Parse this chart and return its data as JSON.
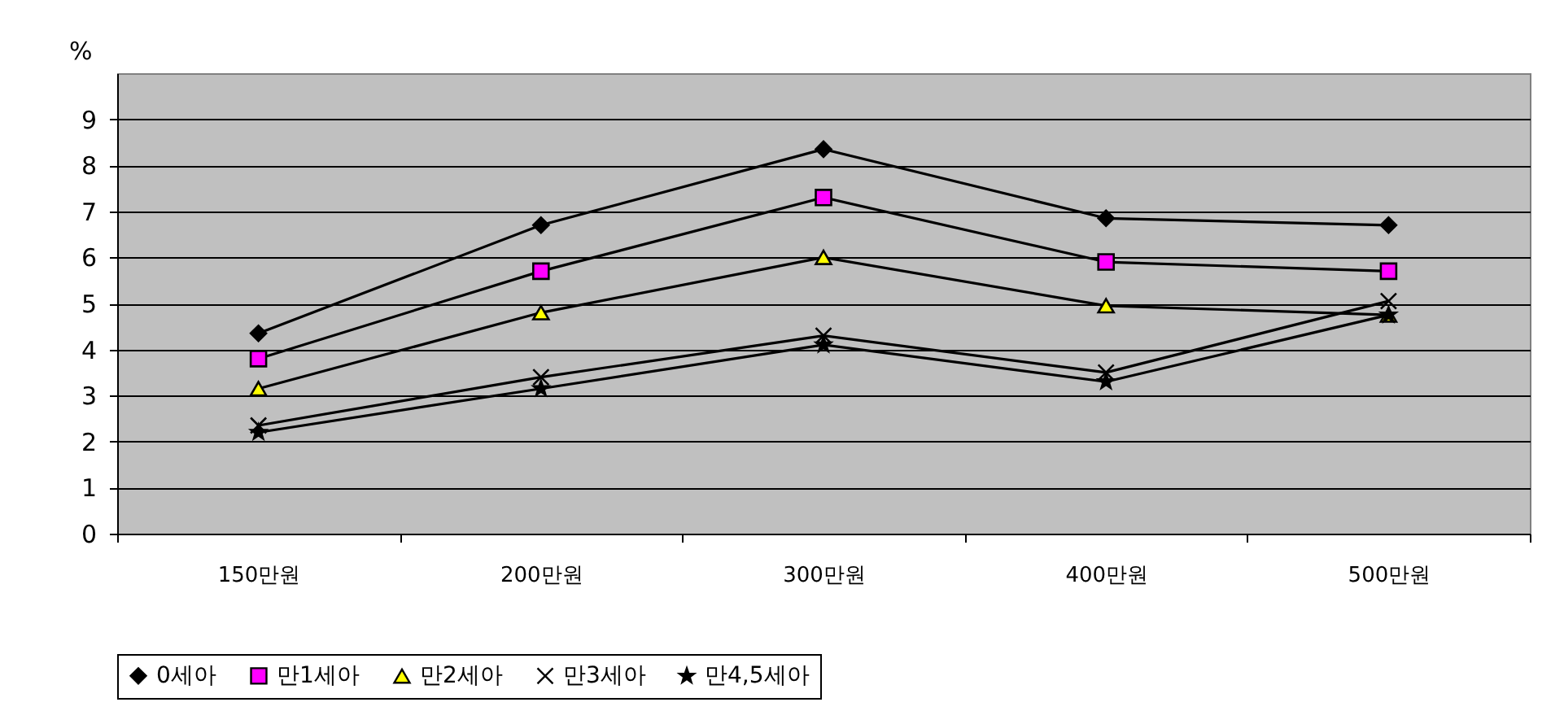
{
  "chart_data": {
    "type": "line",
    "ylabel": "%",
    "categories": [
      "150만원",
      "200만원",
      "300만원",
      "400만원",
      "500만원"
    ],
    "series": [
      {
        "name": "0세아",
        "color": "#000000",
        "marker": "diamond",
        "values": [
          4.35,
          6.7,
          8.35,
          6.85,
          6.7
        ]
      },
      {
        "name": "만1세아",
        "color": "#ff00ff",
        "marker": "square",
        "values": [
          3.8,
          5.7,
          7.3,
          5.9,
          5.7
        ]
      },
      {
        "name": "만2세아",
        "color": "#ffff00",
        "marker": "triangle",
        "values": [
          3.15,
          4.8,
          6.0,
          4.95,
          4.75
        ]
      },
      {
        "name": "만3세아",
        "color": "#000000",
        "marker": "cross",
        "values": [
          2.35,
          3.4,
          4.3,
          3.5,
          5.05
        ]
      },
      {
        "name": "만4,5세아",
        "color": "#000000",
        "marker": "star",
        "values": [
          2.2,
          3.15,
          4.1,
          3.3,
          4.75
        ]
      }
    ],
    "ylim": [
      0,
      10
    ],
    "yticks": [
      0,
      1,
      2,
      3,
      4,
      5,
      6,
      7,
      8,
      9
    ],
    "grid": "y",
    "legend": "bottom",
    "line_style": "solid"
  }
}
